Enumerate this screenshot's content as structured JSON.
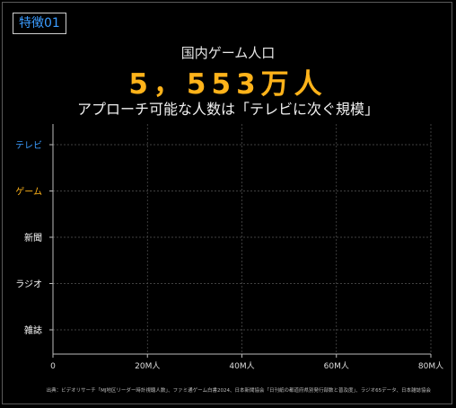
{
  "badge": "特徴01",
  "headline": {
    "label": "国内ゲーム人口",
    "value": "5，553万人",
    "subtitle": "アプローチ可能な人数は「テレビに次ぐ規模」"
  },
  "colors": {
    "highlight_blue": "#3b9cff",
    "highlight_orange": "#ffb31a",
    "default": "#ffffff"
  },
  "chart_data": {
    "type": "bar",
    "orientation": "horizontal",
    "categories": [
      "テレビ",
      "ゲーム",
      "新聞",
      "ラジオ",
      "雑誌"
    ],
    "category_colors": [
      "#3b9cff",
      "#ffb31a",
      "#ffffff",
      "#ffffff",
      "#ffffff"
    ],
    "values": [
      null,
      null,
      null,
      null,
      null
    ],
    "xlim": [
      0,
      80
    ],
    "xticks": [
      0,
      20,
      40,
      60,
      80
    ],
    "xtick_labels": [
      "0",
      "20M人",
      "40M人",
      "60M人",
      "80M人"
    ],
    "grid": true
  },
  "source": "出典：ビデオリサーチ「MJ地区リーダー時計視聴人数」、ファミ通ゲーム白書2024、日本新聞協会「日刊紙の都道府県別発行部数と普及度」、ラジオ65データ、日本雑誌協会"
}
